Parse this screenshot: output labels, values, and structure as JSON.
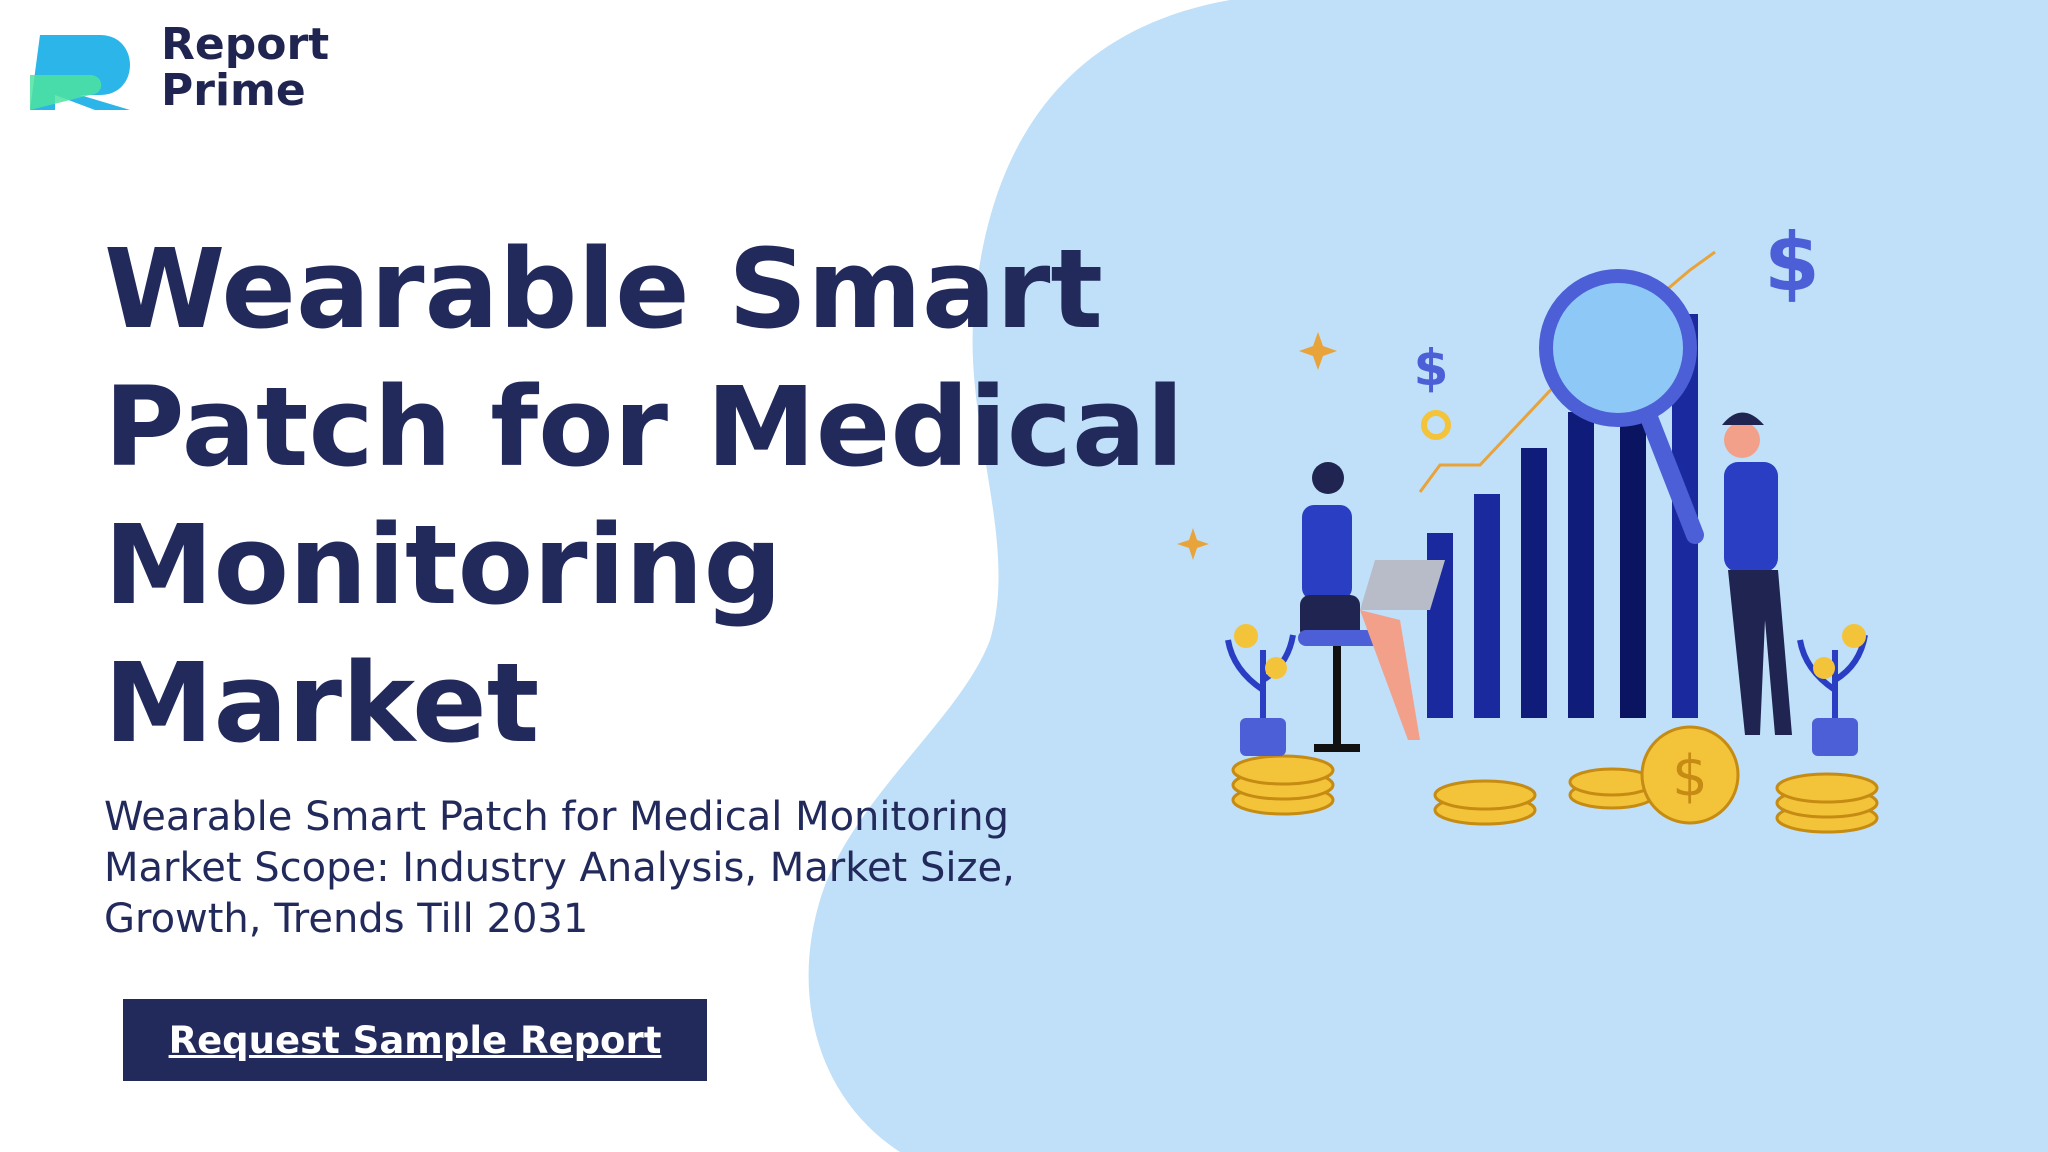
{
  "logo": {
    "line1": "Report",
    "line2": "Prime"
  },
  "title_lines": [
    "Wearable Smart",
    "Patch for Medical",
    "Monitoring",
    "Market"
  ],
  "subtitle_lines": [
    "Wearable Smart Patch for Medical Monitoring",
    "Market Scope: Industry Analysis, Market Size,",
    "Growth, Trends Till 2031"
  ],
  "button": "Request Sample Report"
}
